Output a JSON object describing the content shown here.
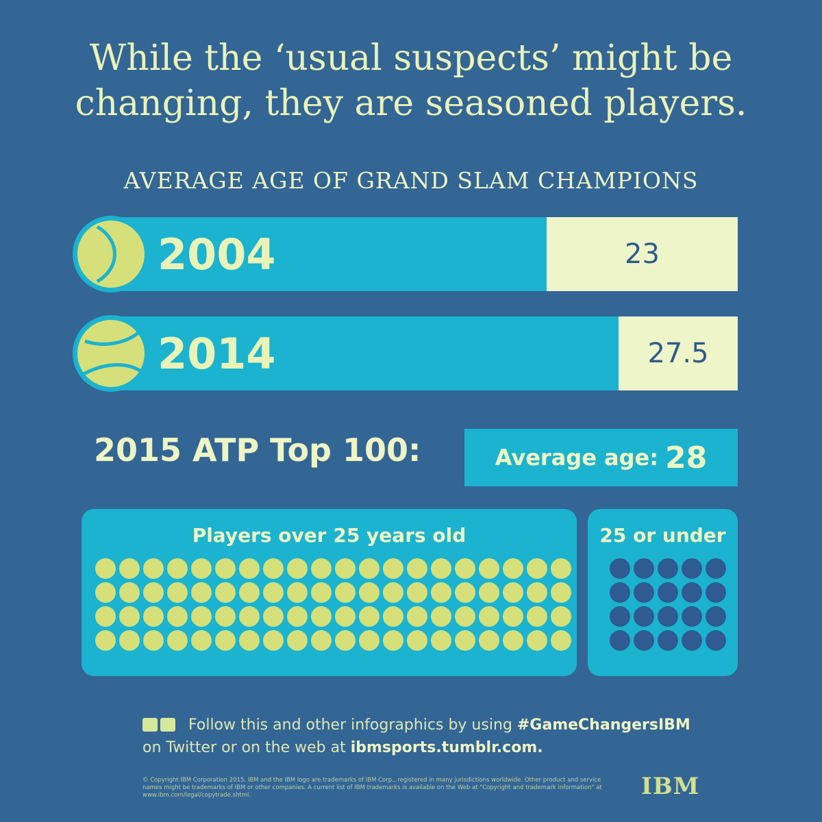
{
  "headline": {
    "line1": "While the ‘usual suspects’ might be",
    "line2": "changing, they are seasoned players."
  },
  "subhead": "AVERAGE AGE OF GRAND SLAM CHAMPIONS",
  "chart_data": {
    "type": "bar",
    "title": "AVERAGE AGE OF GRAND SLAM CHAMPIONS",
    "categories": [
      "2004",
      "2014"
    ],
    "values": [
      23,
      27.5
    ],
    "value_labels": [
      "23",
      "27.5"
    ]
  },
  "atp": {
    "label": "2015 ATP Top 100:",
    "box_label": "Average age:",
    "box_value": "28"
  },
  "players": {
    "over_label": "Players over 25 years old",
    "under_label": "25 or under",
    "over_count": 80,
    "under_count": 20
  },
  "footer": {
    "line1_prefix": "Follow this and other infographics by using",
    "hashtag": "#GameChangersIBM",
    "line2_prefix": "on Twitter or on the web at",
    "site": "ibmsports.tumblr.com."
  },
  "legal": "© Copyright IBM Corporation 2015. IBM and the IBM logo are trademarks of IBM Corp., registered in many jurisdictions worldwide. Other product and service names might be trademarks of IBM or other companies. A current list of IBM trademarks is available on the Web at \"Copyright and trademark information\" at www.ibm.com/legal/copytrade.shtml.",
  "logo": "IBM",
  "colors": {
    "background": "#336595",
    "accent": "#1bb3cf",
    "ball": "#d6e07a",
    "dot_over": "#d6e07a",
    "dot_under": "#2f5a92",
    "value_box": "#eef5c8"
  },
  "icons": [
    "tennis-ball-icon",
    "twitter-icon",
    "computer-icon"
  ]
}
